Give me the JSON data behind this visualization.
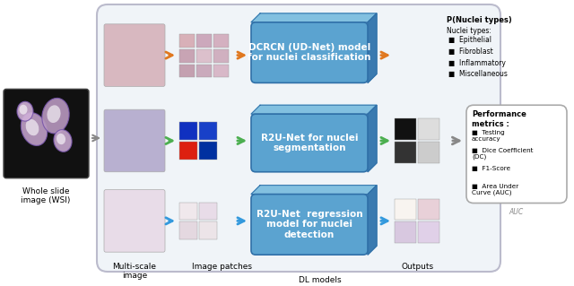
{
  "background_color": "#ffffff",
  "wsi_label": "Whole slide\nimage (WSI)",
  "multiscale_label": "Multi-scale\nimage",
  "patches_label": "Image patches",
  "dl_label": "DL models",
  "outputs_label": "Outputs",
  "arrow_top": "#e07820",
  "arrow_mid": "#4caf50",
  "arrow_bot": "#3399dd",
  "arrow_gray": "#888888",
  "dl_face": "#5ba3d0",
  "dl_top": "#82c0e0",
  "dl_side": "#3a7ab0",
  "dl_edge": "#3070a8",
  "dl_boxes": [
    "DCRCN (UD-Net) model\nfor nuclei classification",
    "R2U-Net for nuclei\nsegmentation",
    "R2U-Net  regression\nmodel for nuclei\ndetection"
  ],
  "p_nuclei_title": "P(Nuclei types)",
  "nuclei_subtitle": "Nuclei types:",
  "nuclei_types": [
    "Epithelial",
    "Fibroblast",
    "Inflammatory",
    "Miscellaneous"
  ],
  "perf_title": "Performance\nmetrics :",
  "perf_items": [
    "Testing\naccuracy",
    "Dice Coefficient\n(DC)",
    "F1-Score",
    "Area Under\nCurve (AUC)"
  ],
  "perf_footer": "AUC",
  "outer_bg": "#f0f4f8",
  "outer_edge": "#bbbbcc"
}
